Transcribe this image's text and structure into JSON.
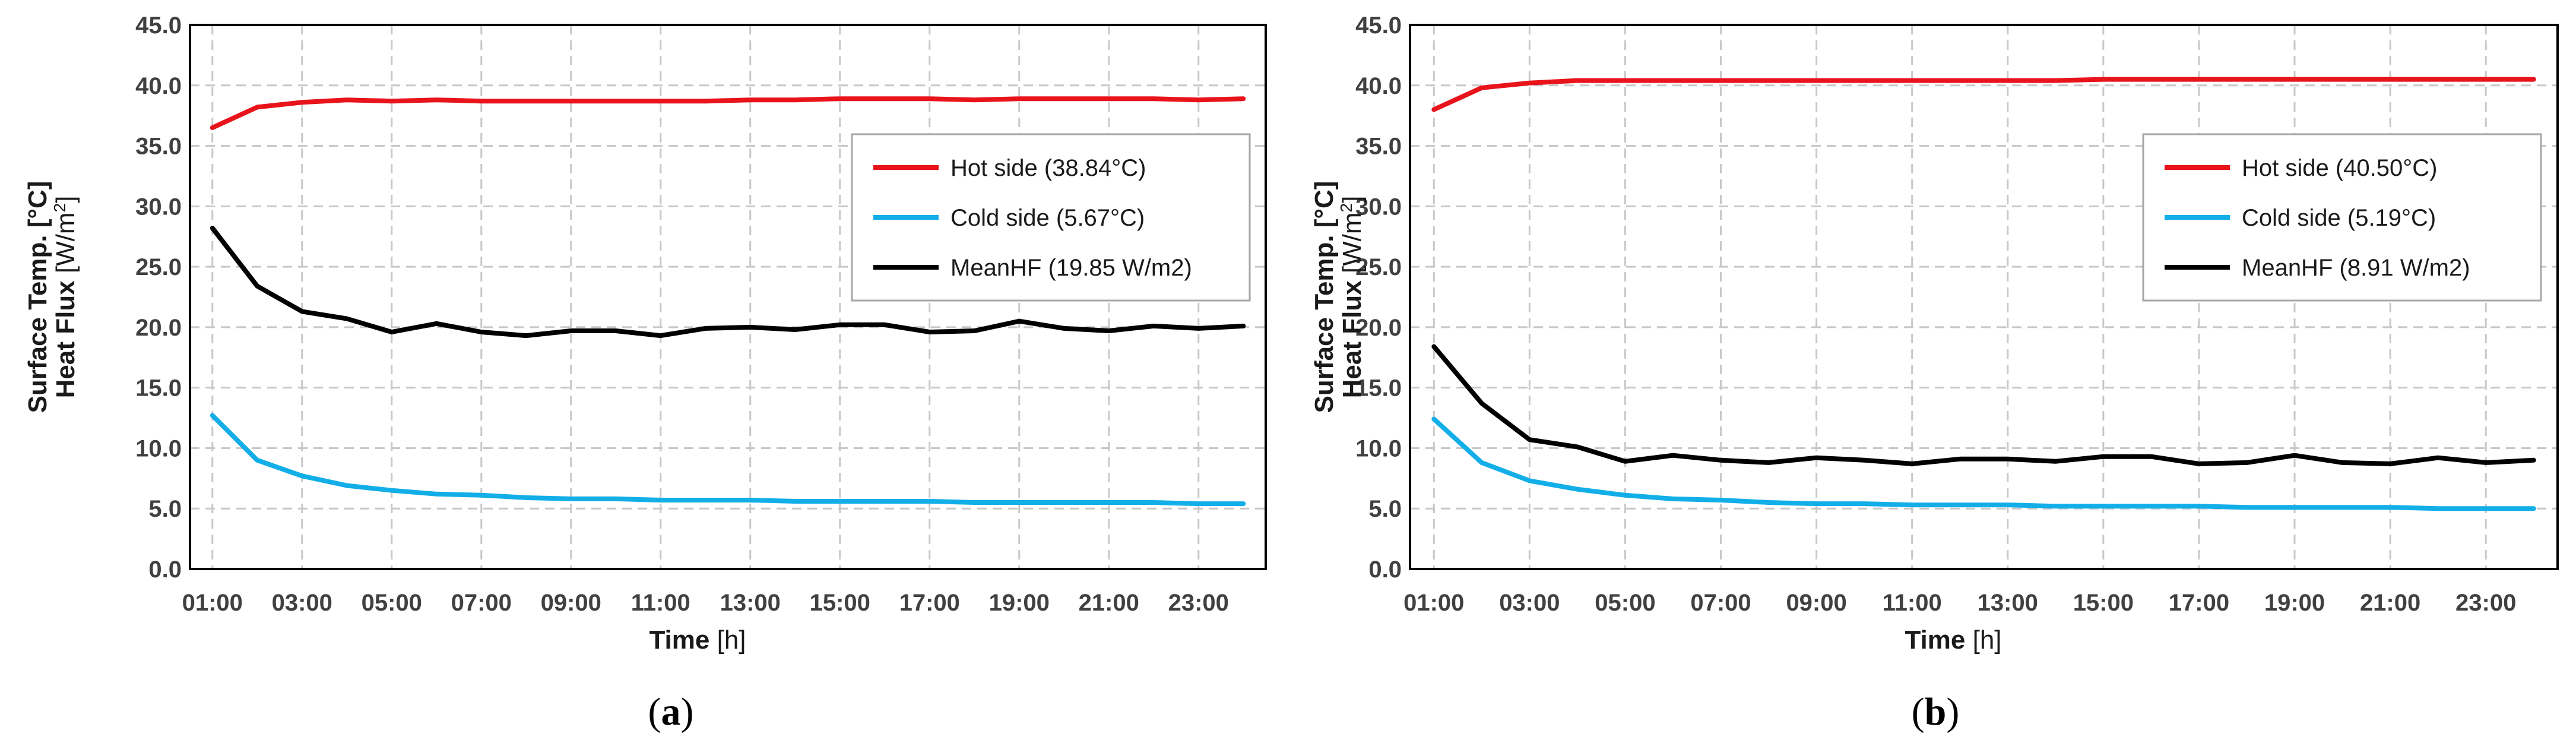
{
  "chart_data": [
    {
      "type": "line",
      "caption_letter": "a",
      "xlabel": "Time",
      "xlabel_unit": "[h]",
      "ylabel_line1": "Surface Temp. [°C]",
      "ylabel_line2_main": "Heat Flux",
      "ylabel_line2_unit": "[W/m",
      "ylabel_line2_sup": "2",
      "ylabel_line2_close": "]",
      "ylim": [
        0,
        45
      ],
      "yticks": [
        "0.0",
        "5.0",
        "10.0",
        "15.0",
        "20.0",
        "25.0",
        "30.0",
        "35.0",
        "40.0",
        "45.0"
      ],
      "xticks": [
        "01:00",
        "03:00",
        "05:00",
        "07:00",
        "09:00",
        "11:00",
        "13:00",
        "15:00",
        "17:00",
        "19:00",
        "21:00",
        "23:00"
      ],
      "x": [
        "01:00",
        "02:00",
        "03:00",
        "04:00",
        "05:00",
        "06:00",
        "07:00",
        "08:00",
        "09:00",
        "10:00",
        "11:00",
        "12:00",
        "13:00",
        "14:00",
        "15:00",
        "16:00",
        "17:00",
        "18:00",
        "19:00",
        "20:00",
        "21:00",
        "22:00",
        "23:00",
        "24:00"
      ],
      "series": [
        {
          "name": "Hot side (38.84°C)",
          "color": "#e8131b",
          "values": [
            36.5,
            38.2,
            38.6,
            38.8,
            38.7,
            38.8,
            38.7,
            38.7,
            38.7,
            38.7,
            38.7,
            38.7,
            38.8,
            38.8,
            38.9,
            38.9,
            38.9,
            38.8,
            38.9,
            38.9,
            38.9,
            38.9,
            38.8,
            38.9
          ]
        },
        {
          "name": "Cold side (5.67°C)",
          "color": "#12aee8",
          "values": [
            12.7,
            9.0,
            7.7,
            6.9,
            6.5,
            6.2,
            6.1,
            5.9,
            5.8,
            5.8,
            5.7,
            5.7,
            5.7,
            5.6,
            5.6,
            5.6,
            5.6,
            5.5,
            5.5,
            5.5,
            5.5,
            5.5,
            5.4,
            5.4
          ]
        },
        {
          "name": "MeanHF (19.85 W/m2)",
          "color": "#000000",
          "values": [
            28.2,
            23.4,
            21.3,
            20.7,
            19.6,
            20.3,
            19.6,
            19.3,
            19.7,
            19.7,
            19.3,
            19.9,
            20.0,
            19.8,
            20.2,
            20.2,
            19.6,
            19.7,
            20.5,
            19.9,
            19.7,
            20.1,
            19.9,
            20.1
          ]
        }
      ]
    },
    {
      "type": "line",
      "caption_letter": "b",
      "xlabel": "Time",
      "xlabel_unit": "[h]",
      "ylabel_line1": "Surface Temp. [°C]",
      "ylabel_line2_main": "Heat Flux",
      "ylabel_line2_unit": "[W/m",
      "ylabel_line2_sup": "2",
      "ylabel_line2_close": "]",
      "ylim": [
        0,
        45
      ],
      "yticks": [
        "0.0",
        "5.0",
        "10.0",
        "15.0",
        "20.0",
        "25.0",
        "30.0",
        "35.0",
        "40.0",
        "45.0"
      ],
      "xticks": [
        "01:00",
        "03:00",
        "05:00",
        "07:00",
        "09:00",
        "11:00",
        "13:00",
        "15:00",
        "17:00",
        "19:00",
        "21:00",
        "23:00"
      ],
      "x": [
        "01:00",
        "02:00",
        "03:00",
        "04:00",
        "05:00",
        "06:00",
        "07:00",
        "08:00",
        "09:00",
        "10:00",
        "11:00",
        "12:00",
        "13:00",
        "14:00",
        "15:00",
        "16:00",
        "17:00",
        "18:00",
        "19:00",
        "20:00",
        "21:00",
        "22:00",
        "23:00",
        "24:00"
      ],
      "series": [
        {
          "name": "Hot side (40.50°C)",
          "color": "#e8131b",
          "values": [
            38.0,
            39.8,
            40.2,
            40.4,
            40.4,
            40.4,
            40.4,
            40.4,
            40.4,
            40.4,
            40.4,
            40.4,
            40.4,
            40.4,
            40.5,
            40.5,
            40.5,
            40.5,
            40.5,
            40.5,
            40.5,
            40.5,
            40.5,
            40.5
          ]
        },
        {
          "name": "Cold side (5.19°C)",
          "color": "#12aee8",
          "values": [
            12.4,
            8.8,
            7.3,
            6.6,
            6.1,
            5.8,
            5.7,
            5.5,
            5.4,
            5.4,
            5.3,
            5.3,
            5.3,
            5.2,
            5.2,
            5.2,
            5.2,
            5.1,
            5.1,
            5.1,
            5.1,
            5.0,
            5.0,
            5.0
          ]
        },
        {
          "name": "MeanHF (8.91 W/m2)",
          "color": "#000000",
          "values": [
            18.4,
            13.7,
            10.7,
            10.1,
            8.9,
            9.4,
            9.0,
            8.8,
            9.2,
            9.0,
            8.7,
            9.1,
            9.1,
            8.9,
            9.3,
            9.3,
            8.7,
            8.8,
            9.4,
            8.8,
            8.7,
            9.2,
            8.8,
            9.0
          ]
        }
      ]
    }
  ]
}
